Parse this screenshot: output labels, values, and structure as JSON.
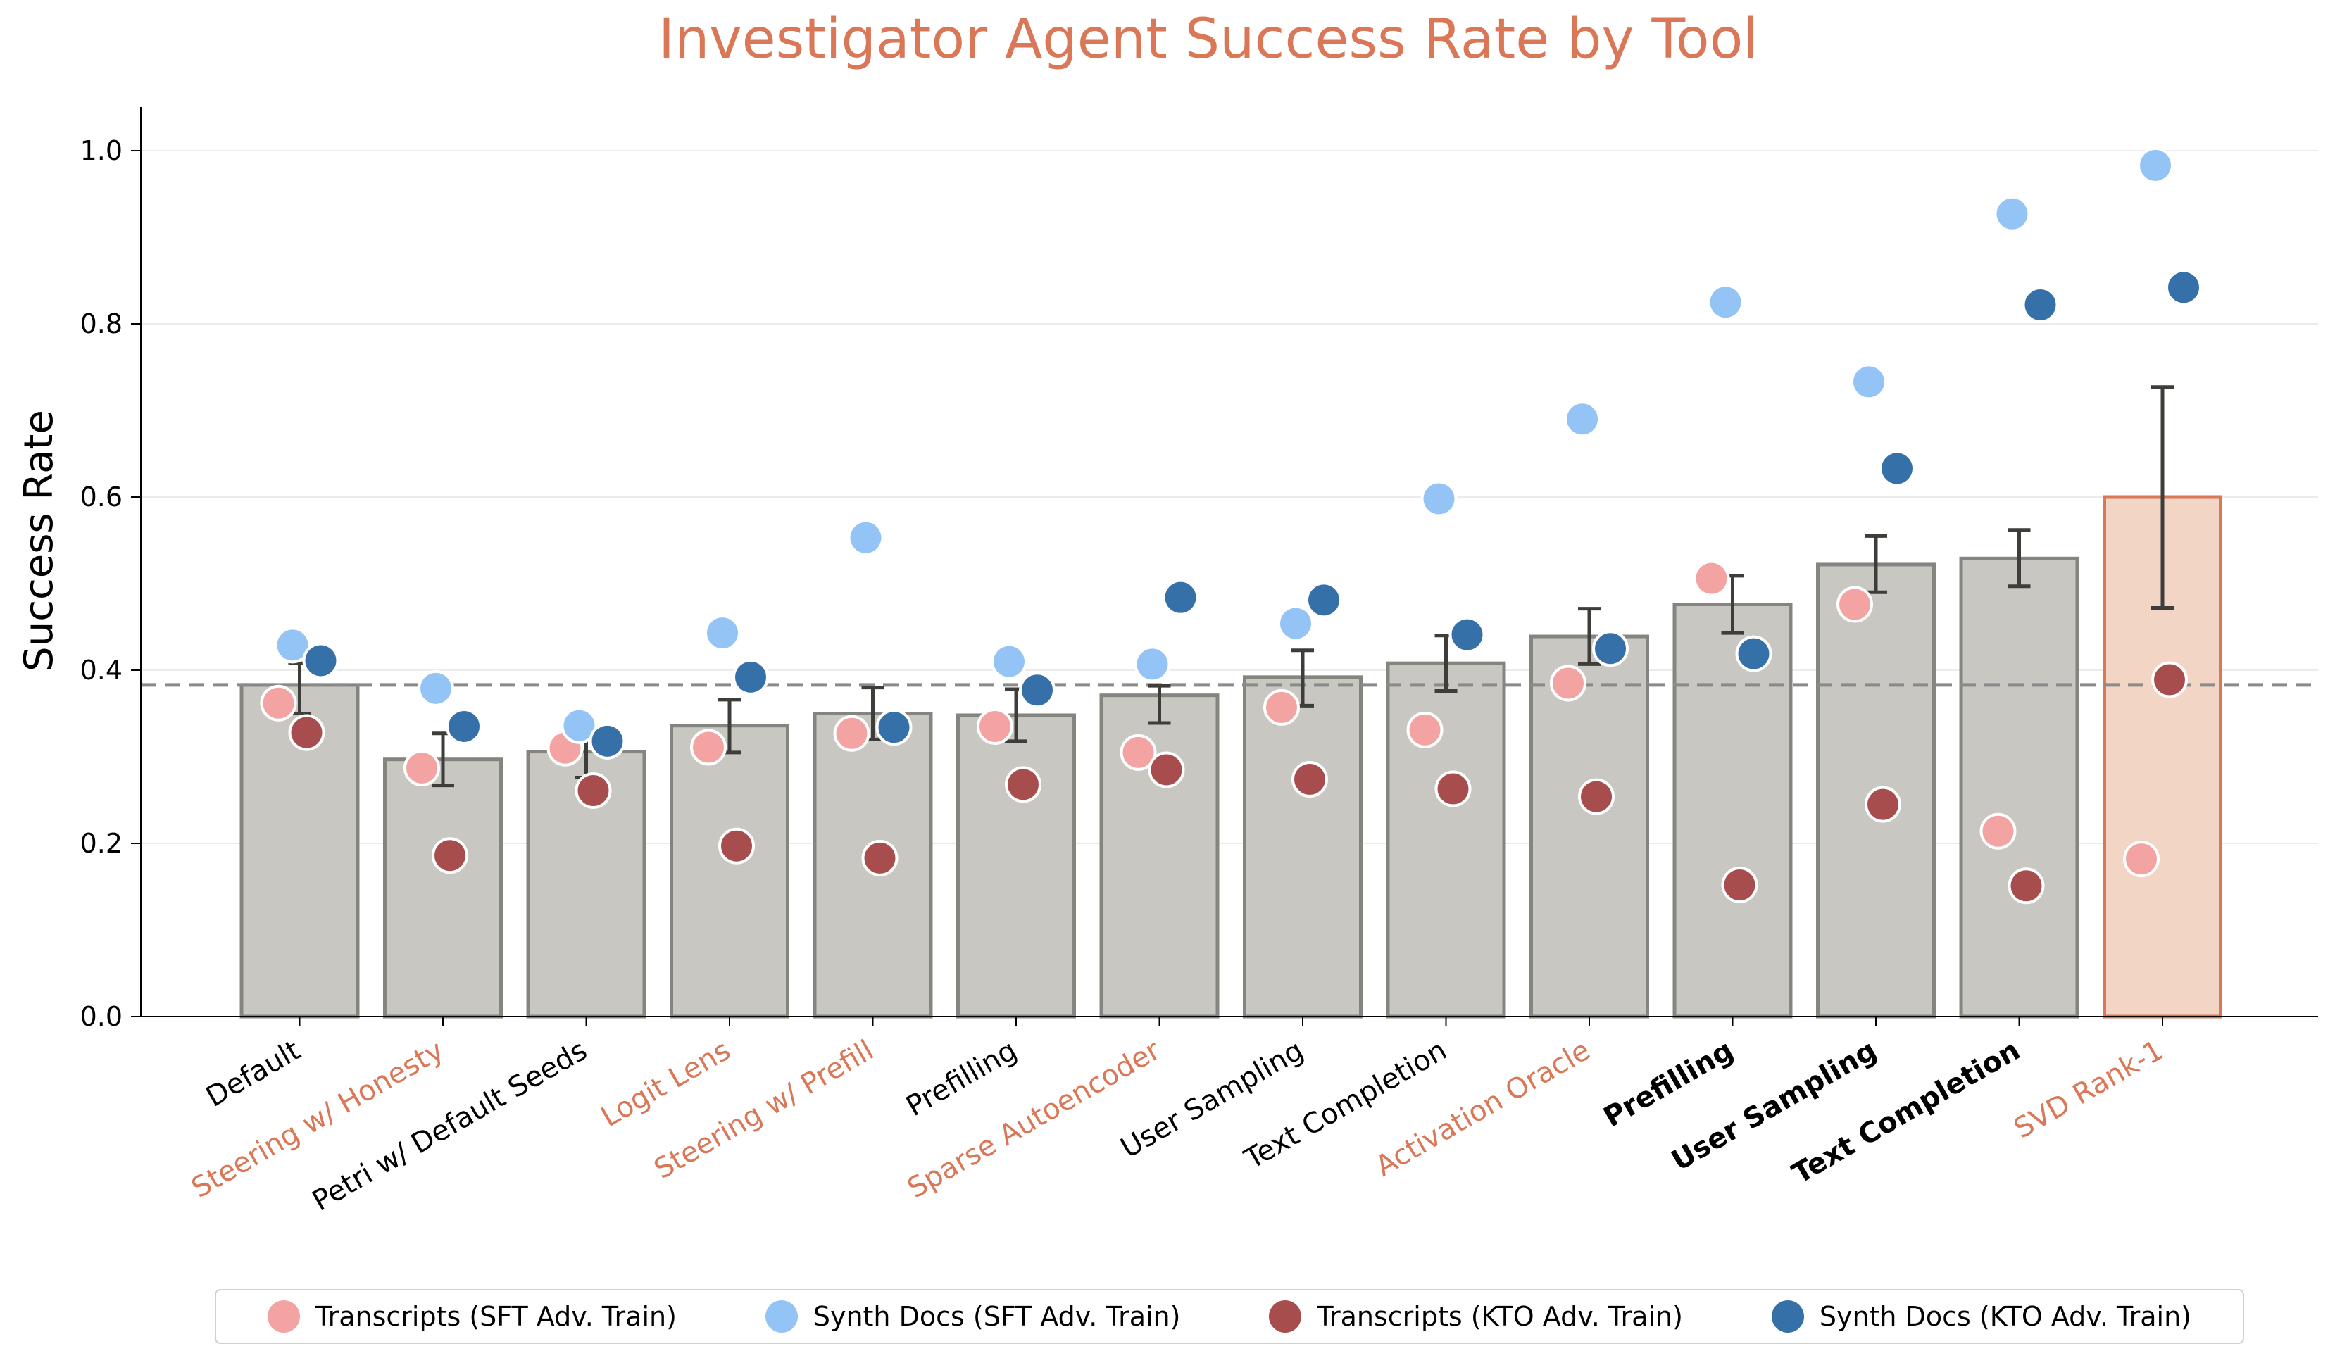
{
  "chart_data": {
    "type": "bar",
    "title": "Investigator Agent Success Rate by Tool",
    "xlabel": "",
    "ylabel": "Success Rate",
    "ylim": [
      0,
      1.05
    ],
    "yticks": [
      "0.0",
      "0.2",
      "0.4",
      "0.6",
      "0.8",
      "1.0"
    ],
    "grid": "horizontal",
    "legend_position": "bottom",
    "baseline": 0.383,
    "colors": {
      "title": "#d97757",
      "bar_fill": "#c8c7c2",
      "bar_edge": "#858580",
      "highlight_fill": "#f2d5c5",
      "highlight_edge": "#d97757",
      "orange_label": "#d97757",
      "error_bar": "#3d3d3a",
      "baseline": "#8a8a8a"
    },
    "categories": [
      "Default",
      "Steering w/ Honesty",
      "Petri w/ Default Seeds",
      "Logit Lens",
      "Steering w/ Prefill",
      "Prefilling",
      "Sparse Autoencoder",
      "User Sampling",
      "Text Completion",
      "Activation Oracle",
      "Prefilling",
      "User Sampling",
      "Text Completion",
      "SVD Rank-1"
    ],
    "label_styles": [
      "black",
      "orange",
      "black",
      "orange",
      "orange",
      "black",
      "orange",
      "black",
      "black",
      "orange",
      "bold",
      "bold",
      "bold",
      "orange"
    ],
    "highlight_index": 13,
    "values": [
      0.383,
      0.297,
      0.306,
      0.336,
      0.35,
      0.348,
      0.371,
      0.392,
      0.408,
      0.439,
      0.476,
      0.522,
      0.529,
      0.6
    ],
    "error_low": [
      0.35,
      0.267,
      0.276,
      0.305,
      0.32,
      0.318,
      0.339,
      0.359,
      0.376,
      0.407,
      0.443,
      0.49,
      0.497,
      0.472
    ],
    "error_high": [
      0.408,
      0.327,
      0.336,
      0.366,
      0.38,
      0.378,
      0.382,
      0.423,
      0.44,
      0.471,
      0.509,
      0.555,
      0.562,
      0.727
    ],
    "series": [
      {
        "name": "Transcripts (SFT Adv. Train)",
        "color": "#f4a3a3",
        "values": [
          0.362,
          0.287,
          0.31,
          0.311,
          0.327,
          0.335,
          0.305,
          0.357,
          0.331,
          0.385,
          0.506,
          0.476,
          0.214,
          0.182
        ]
      },
      {
        "name": "Synth Docs (SFT Adv. Train)",
        "color": "#94c4f5",
        "values": [
          0.429,
          0.379,
          0.336,
          0.443,
          0.553,
          0.41,
          0.407,
          0.454,
          0.598,
          0.69,
          0.825,
          0.733,
          0.927,
          0.983
        ]
      },
      {
        "name": "Transcripts (KTO Adv. Train)",
        "color": "#a84d4d",
        "values": [
          0.328,
          0.186,
          0.261,
          0.197,
          0.183,
          0.268,
          0.285,
          0.274,
          0.263,
          0.254,
          0.152,
          0.245,
          0.151,
          0.389
        ]
      },
      {
        "name": "Synth Docs (KTO Adv. Train)",
        "color": "#3570a8",
        "values": [
          0.411,
          0.335,
          0.318,
          0.392,
          0.334,
          0.377,
          0.484,
          0.481,
          0.441,
          0.425,
          0.419,
          0.633,
          0.822,
          0.842
        ]
      }
    ]
  }
}
